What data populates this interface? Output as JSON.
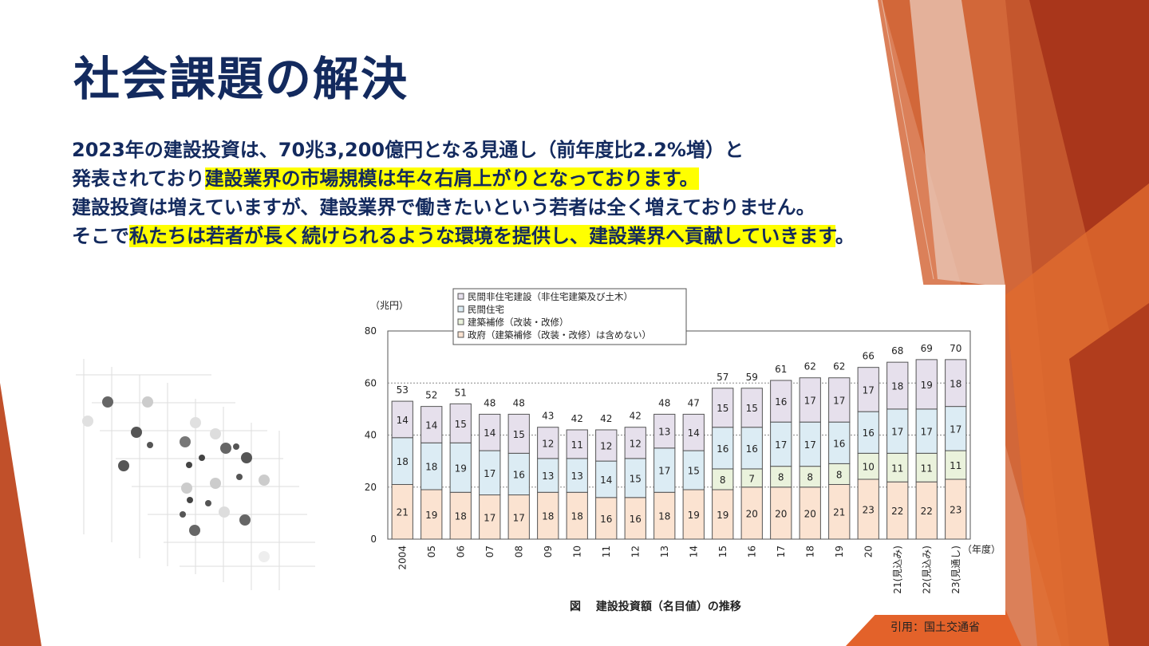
{
  "slide": {
    "title": "社会課題の解決",
    "lines": [
      {
        "plain_before": "2023年の建設投資は、70兆3,200億円となる見通し（前年度比2.2%増）と",
        "highlight": "",
        "plain_after": ""
      },
      {
        "plain_before": "発表されており",
        "highlight": "建設業界の市場規模は年々右肩上がりとなっております。",
        "plain_after": ""
      },
      {
        "plain_before": "建設投資は増えていますが、建設業界で働きたいという若者は全く増えておりません。",
        "highlight": "",
        "plain_after": ""
      },
      {
        "plain_before": "そこで",
        "highlight": "私たちは若者が長く続けられるような環境を提供し、建設業界へ貢献していきます",
        "plain_after": "。"
      }
    ],
    "source": "引用：国土交通省",
    "colors": {
      "title": "#132a5e",
      "highlight": "#ffff00",
      "accent_orange": "#d9541f",
      "accent_dark": "#a3341a"
    }
  },
  "chart_data": {
    "type": "bar",
    "stacked": true,
    "caption": "図　 建設投資額（名目値）の推移",
    "y_unit": "（兆円）",
    "x_unit": "（年度）",
    "ylim": [
      0,
      80
    ],
    "yticks": [
      "0",
      "20",
      "40",
      "60",
      "80"
    ],
    "grid": true,
    "legend_position": "top",
    "categories": [
      "2004",
      "05",
      "06",
      "07",
      "08",
      "09",
      "10",
      "11",
      "12",
      "13",
      "14",
      "15",
      "16",
      "17",
      "18",
      "19",
      "20",
      "21(見込み)",
      "22(見込み)",
      "23(見通し)"
    ],
    "totals": [
      "53",
      "52",
      "51",
      "48",
      "48",
      "43",
      "42",
      "42",
      "42",
      "48",
      "47",
      "57",
      "59",
      "61",
      "62",
      "62",
      "66",
      "68",
      "69",
      "70"
    ],
    "series": [
      {
        "name": "政府（建築補修（改装・改修）は含めない）",
        "color": "#fbe3d1",
        "values": [
          21,
          19,
          18,
          17,
          17,
          18,
          18,
          16,
          16,
          18,
          19,
          19,
          20,
          20,
          20,
          21,
          23,
          22,
          22,
          23
        ]
      },
      {
        "name": "建築補修（改装・改修）",
        "color": "#eaf2dc",
        "values": [
          0,
          0,
          0,
          0,
          0,
          0,
          0,
          0,
          0,
          0,
          0,
          8,
          7,
          8,
          8,
          8,
          10,
          11,
          11,
          11
        ]
      },
      {
        "name": "民間住宅",
        "color": "#dcecf4",
        "values": [
          18,
          18,
          19,
          17,
          16,
          13,
          13,
          14,
          15,
          17,
          15,
          16,
          16,
          17,
          17,
          16,
          16,
          17,
          17,
          17
        ]
      },
      {
        "name": "民間非住宅建設（非住宅建築及び土木）",
        "color": "#e6e0ec",
        "values": [
          14,
          14,
          15,
          14,
          15,
          12,
          11,
          12,
          12,
          13,
          14,
          15,
          15,
          16,
          17,
          17,
          17,
          18,
          19,
          18
        ]
      }
    ],
    "legend_order": [
      "民間非住宅建設（非住宅建築及び土木）",
      "民間住宅",
      "建築補修（改装・改修）",
      "政府（建築補修（改装・改修）は含めない）"
    ]
  }
}
